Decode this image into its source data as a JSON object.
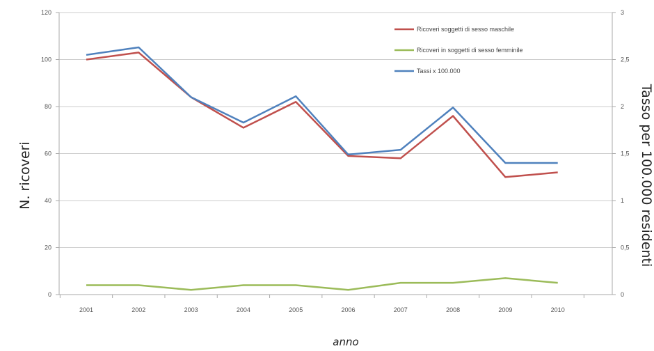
{
  "chart_data": {
    "type": "line",
    "title": "",
    "xlabel": "anno",
    "ylabel": "N. ricoveri",
    "y2label": "Tasso per 100.000 residenti",
    "categories": [
      "2001",
      "2002",
      "2003",
      "2004",
      "2005",
      "2006",
      "2007",
      "2008",
      "2009",
      "2010"
    ],
    "ylim": [
      0,
      120
    ],
    "y_ticks": [
      "0",
      "20",
      "40",
      "60",
      "80",
      "100",
      "120"
    ],
    "y2lim": [
      0,
      3
    ],
    "y2_ticks": [
      "0",
      "0,5",
      "1",
      "1,5",
      "2",
      "2,5",
      "3"
    ],
    "grid": true,
    "legend_position": "top-right",
    "series": [
      {
        "name": "Ricoveri soggetti di sesso maschile",
        "axis": "left",
        "color": "#c0504d",
        "values": [
          100,
          103,
          84,
          71,
          82,
          59,
          58,
          76,
          50,
          52
        ]
      },
      {
        "name": "Ricoveri in soggetti di sesso femminile",
        "axis": "left",
        "color": "#9bbb59",
        "values": [
          4,
          4,
          2,
          4,
          4,
          2,
          5,
          5,
          7,
          5
        ]
      },
      {
        "name": "Tassi x 100.000",
        "axis": "right",
        "color": "#4f81bd",
        "values": [
          2.55,
          2.63,
          2.1,
          1.83,
          2.11,
          1.49,
          1.54,
          1.99,
          1.4,
          1.4
        ]
      }
    ]
  }
}
